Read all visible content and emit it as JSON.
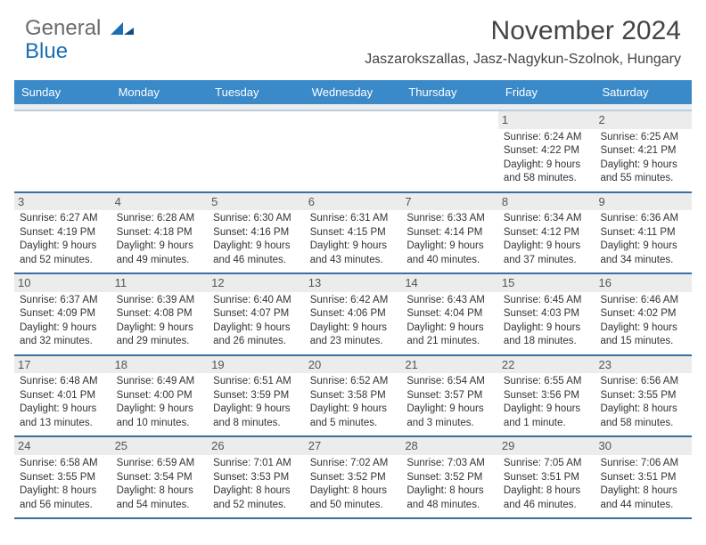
{
  "logo": {
    "text1": "General",
    "text2": "Blue"
  },
  "header": {
    "month_title": "November 2024",
    "location": "Jaszarokszallas, Jasz-Nagykun-Szolnok, Hungary"
  },
  "weekdays": [
    "Sunday",
    "Monday",
    "Tuesday",
    "Wednesday",
    "Thursday",
    "Friday",
    "Saturday"
  ],
  "colors": {
    "header_bar": "#3a89c9",
    "week_divider": "#3a6fa0",
    "daynum_bg": "#ececec",
    "logo_gray": "#6b6b6b",
    "logo_blue": "#1b6fb5"
  },
  "weeks": [
    [
      {
        "n": "",
        "t": ""
      },
      {
        "n": "",
        "t": ""
      },
      {
        "n": "",
        "t": ""
      },
      {
        "n": "",
        "t": ""
      },
      {
        "n": "",
        "t": ""
      },
      {
        "n": "1",
        "t": "Sunrise: 6:24 AM\nSunset: 4:22 PM\nDaylight: 9 hours and 58 minutes."
      },
      {
        "n": "2",
        "t": "Sunrise: 6:25 AM\nSunset: 4:21 PM\nDaylight: 9 hours and 55 minutes."
      }
    ],
    [
      {
        "n": "3",
        "t": "Sunrise: 6:27 AM\nSunset: 4:19 PM\nDaylight: 9 hours and 52 minutes."
      },
      {
        "n": "4",
        "t": "Sunrise: 6:28 AM\nSunset: 4:18 PM\nDaylight: 9 hours and 49 minutes."
      },
      {
        "n": "5",
        "t": "Sunrise: 6:30 AM\nSunset: 4:16 PM\nDaylight: 9 hours and 46 minutes."
      },
      {
        "n": "6",
        "t": "Sunrise: 6:31 AM\nSunset: 4:15 PM\nDaylight: 9 hours and 43 minutes."
      },
      {
        "n": "7",
        "t": "Sunrise: 6:33 AM\nSunset: 4:14 PM\nDaylight: 9 hours and 40 minutes."
      },
      {
        "n": "8",
        "t": "Sunrise: 6:34 AM\nSunset: 4:12 PM\nDaylight: 9 hours and 37 minutes."
      },
      {
        "n": "9",
        "t": "Sunrise: 6:36 AM\nSunset: 4:11 PM\nDaylight: 9 hours and 34 minutes."
      }
    ],
    [
      {
        "n": "10",
        "t": "Sunrise: 6:37 AM\nSunset: 4:09 PM\nDaylight: 9 hours and 32 minutes."
      },
      {
        "n": "11",
        "t": "Sunrise: 6:39 AM\nSunset: 4:08 PM\nDaylight: 9 hours and 29 minutes."
      },
      {
        "n": "12",
        "t": "Sunrise: 6:40 AM\nSunset: 4:07 PM\nDaylight: 9 hours and 26 minutes."
      },
      {
        "n": "13",
        "t": "Sunrise: 6:42 AM\nSunset: 4:06 PM\nDaylight: 9 hours and 23 minutes."
      },
      {
        "n": "14",
        "t": "Sunrise: 6:43 AM\nSunset: 4:04 PM\nDaylight: 9 hours and 21 minutes."
      },
      {
        "n": "15",
        "t": "Sunrise: 6:45 AM\nSunset: 4:03 PM\nDaylight: 9 hours and 18 minutes."
      },
      {
        "n": "16",
        "t": "Sunrise: 6:46 AM\nSunset: 4:02 PM\nDaylight: 9 hours and 15 minutes."
      }
    ],
    [
      {
        "n": "17",
        "t": "Sunrise: 6:48 AM\nSunset: 4:01 PM\nDaylight: 9 hours and 13 minutes."
      },
      {
        "n": "18",
        "t": "Sunrise: 6:49 AM\nSunset: 4:00 PM\nDaylight: 9 hours and 10 minutes."
      },
      {
        "n": "19",
        "t": "Sunrise: 6:51 AM\nSunset: 3:59 PM\nDaylight: 9 hours and 8 minutes."
      },
      {
        "n": "20",
        "t": "Sunrise: 6:52 AM\nSunset: 3:58 PM\nDaylight: 9 hours and 5 minutes."
      },
      {
        "n": "21",
        "t": "Sunrise: 6:54 AM\nSunset: 3:57 PM\nDaylight: 9 hours and 3 minutes."
      },
      {
        "n": "22",
        "t": "Sunrise: 6:55 AM\nSunset: 3:56 PM\nDaylight: 9 hours and 1 minute."
      },
      {
        "n": "23",
        "t": "Sunrise: 6:56 AM\nSunset: 3:55 PM\nDaylight: 8 hours and 58 minutes."
      }
    ],
    [
      {
        "n": "24",
        "t": "Sunrise: 6:58 AM\nSunset: 3:55 PM\nDaylight: 8 hours and 56 minutes."
      },
      {
        "n": "25",
        "t": "Sunrise: 6:59 AM\nSunset: 3:54 PM\nDaylight: 8 hours and 54 minutes."
      },
      {
        "n": "26",
        "t": "Sunrise: 7:01 AM\nSunset: 3:53 PM\nDaylight: 8 hours and 52 minutes."
      },
      {
        "n": "27",
        "t": "Sunrise: 7:02 AM\nSunset: 3:52 PM\nDaylight: 8 hours and 50 minutes."
      },
      {
        "n": "28",
        "t": "Sunrise: 7:03 AM\nSunset: 3:52 PM\nDaylight: 8 hours and 48 minutes."
      },
      {
        "n": "29",
        "t": "Sunrise: 7:05 AM\nSunset: 3:51 PM\nDaylight: 8 hours and 46 minutes."
      },
      {
        "n": "30",
        "t": "Sunrise: 7:06 AM\nSunset: 3:51 PM\nDaylight: 8 hours and 44 minutes."
      }
    ]
  ]
}
